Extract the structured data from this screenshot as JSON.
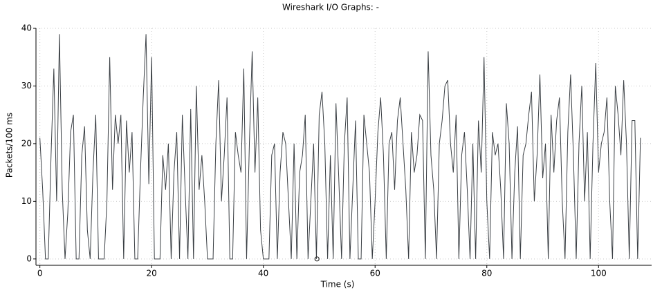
{
  "chart_data": {
    "type": "line",
    "title": "Wireshark I/O Graphs: -",
    "xlabel": "Time (s)",
    "ylabel": "Packets/100 ms",
    "color": "#3a3f44",
    "grid": true,
    "xlim": [
      -0.7,
      109.5
    ],
    "ylim": [
      -1.1,
      40
    ],
    "xticks": [
      0,
      20,
      40,
      60,
      80,
      100
    ],
    "yticks": [
      0,
      10,
      20,
      30,
      40
    ],
    "x": [
      0,
      0.5,
      1,
      1.5,
      2,
      2.5,
      3,
      3.5,
      4,
      4.5,
      5,
      5.5,
      6,
      6.5,
      7,
      7.5,
      8,
      8.5,
      9,
      9.5,
      10,
      10.5,
      11,
      11.5,
      12,
      12.5,
      13,
      13.5,
      14,
      14.5,
      15,
      15.5,
      16,
      16.5,
      17,
      17.5,
      18,
      18.5,
      19,
      19.5,
      20,
      20.5,
      21,
      21.5,
      22,
      22.5,
      23,
      23.5,
      24,
      24.5,
      25,
      25.5,
      26,
      26.5,
      27,
      27.5,
      28,
      28.5,
      29,
      29.5,
      30,
      30.5,
      31,
      31.5,
      32,
      32.5,
      33,
      33.5,
      34,
      34.5,
      35,
      35.5,
      36,
      36.5,
      37,
      37.5,
      38,
      38.5,
      39,
      39.5,
      40,
      40.5,
      41,
      41.5,
      42,
      42.5,
      43,
      43.5,
      44,
      44.5,
      45,
      45.5,
      46,
      46.5,
      47,
      47.5,
      48,
      48.5,
      49,
      49.5,
      50,
      50.5,
      51,
      51.5,
      52,
      52.5,
      53,
      53.5,
      54,
      54.5,
      55,
      55.5,
      56,
      56.5,
      57,
      57.5,
      58,
      58.5,
      59,
      59.5,
      60,
      60.5,
      61,
      61.5,
      62,
      62.5,
      63,
      63.5,
      64,
      64.5,
      65,
      65.5,
      66,
      66.5,
      67,
      67.5,
      68,
      68.5,
      69,
      69.5,
      70,
      70.5,
      71,
      71.5,
      72,
      72.5,
      73,
      73.5,
      74,
      74.5,
      75,
      75.5,
      76,
      76.5,
      77,
      77.5,
      78,
      78.5,
      79,
      79.5,
      80,
      80.5,
      81,
      81.5,
      82,
      82.5,
      83,
      83.5,
      84,
      84.5,
      85,
      85.5,
      86,
      86.5,
      87,
      87.5,
      88,
      88.5,
      89,
      89.5,
      90,
      90.5,
      91,
      91.5,
      92,
      92.5,
      93,
      93.5,
      94,
      94.5,
      95,
      95.5,
      96,
      96.5,
      97,
      97.5,
      98,
      98.5,
      99,
      99.5,
      100,
      100.5,
      101,
      101.5,
      102,
      102.5,
      103,
      103.5,
      104,
      104.5,
      105,
      105.5,
      106,
      106.5,
      107,
      107.5
    ],
    "values": [
      21,
      12,
      0,
      0,
      18,
      33,
      10,
      39,
      12,
      0,
      8,
      22,
      25,
      0,
      0,
      18,
      23,
      5,
      0,
      15,
      25,
      0,
      0,
      0,
      10,
      35,
      12,
      25,
      20,
      25,
      0,
      24,
      15,
      22,
      0,
      0,
      15,
      28,
      39,
      13,
      35,
      0,
      0,
      0,
      18,
      12,
      20,
      0,
      15,
      22,
      0,
      25,
      12,
      0,
      26,
      0,
      30,
      12,
      18,
      10,
      0,
      0,
      0,
      20,
      31,
      10,
      18,
      28,
      0,
      0,
      22,
      18,
      15,
      33,
      0,
      20,
      36,
      15,
      28,
      5,
      0,
      0,
      0,
      18,
      20,
      0,
      15,
      22,
      20,
      10,
      0,
      20,
      0,
      15,
      18,
      25,
      0,
      10,
      20,
      0,
      25,
      29,
      20,
      0,
      18,
      0,
      27,
      14,
      0,
      20,
      28,
      0,
      12,
      24,
      0,
      0,
      25,
      20,
      15,
      0,
      10,
      22,
      28,
      18,
      0,
      20,
      22,
      12,
      24,
      28,
      20,
      12,
      0,
      22,
      15,
      18,
      25,
      24,
      0,
      36,
      18,
      12,
      0,
      20,
      24,
      30,
      31,
      20,
      15,
      25,
      0,
      18,
      22,
      12,
      0,
      20,
      0,
      24,
      15,
      35,
      10,
      0,
      22,
      18,
      20,
      12,
      0,
      27,
      20,
      0,
      15,
      23,
      0,
      18,
      20,
      25,
      29,
      10,
      18,
      32,
      14,
      20,
      0,
      25,
      15,
      24,
      28,
      10,
      0,
      22,
      32,
      18,
      0,
      20,
      30,
      10,
      22,
      0,
      20,
      34,
      15,
      20,
      22,
      28,
      10,
      0,
      30,
      25,
      18,
      31,
      20,
      0,
      24,
      24,
      0,
      21
    ],
    "selected_point": {
      "x": 49.6,
      "y": 0
    }
  }
}
